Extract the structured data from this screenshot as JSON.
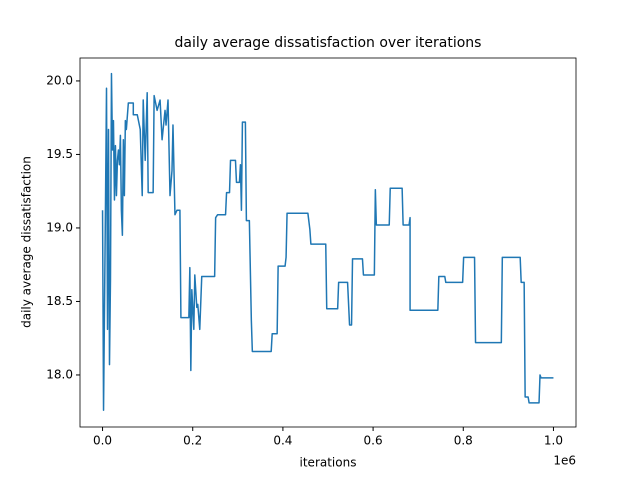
{
  "chart_data": {
    "type": "line",
    "title": "daily average dissatisfaction over iterations",
    "xlabel": "iterations",
    "ylabel": "daily average dissatisfaction",
    "x_offset_label": "1e6",
    "x": [
      0,
      2200,
      6600,
      8800,
      11000,
      13200,
      15400,
      17600,
      19800,
      22000,
      24200,
      26400,
      28600,
      30800,
      33000,
      35200,
      37400,
      39600,
      41800,
      44000,
      46200,
      48400,
      50600,
      52800,
      57200,
      68200,
      68200,
      77000,
      83600,
      88000,
      90200,
      94600,
      99000,
      101200,
      112200,
      114400,
      121000,
      127600,
      132000,
      138600,
      140800,
      145200,
      149600,
      154000,
      156200,
      160600,
      165000,
      171600,
      173800,
      191400,
      193600,
      195800,
      198000,
      202400,
      204600,
      209000,
      211200,
      215600,
      220000,
      248600,
      250800,
      255200,
      272800,
      275000,
      281600,
      283800,
      294800,
      297000,
      303600,
      305800,
      308000,
      310200,
      316800,
      319000,
      325600,
      330000,
      332200,
      374000,
      376200,
      387200,
      389400,
      404800,
      407000,
      409200,
      455400,
      459800,
      462000,
      495000,
      497200,
      521400,
      523600,
      543400,
      547800,
      552200,
      554400,
      576400,
      578600,
      602800,
      605000,
      607200,
      635800,
      638000,
      664400,
      666600,
      679800,
      682000,
      682000,
      743600,
      745800,
      759000,
      761200,
      798600,
      800800,
      825000,
      827200,
      884400,
      886600,
      926200,
      928400,
      935000,
      937200,
      943800,
      946000,
      968000,
      970200,
      972400,
      1000000
    ],
    "series": [
      {
        "name": "dissatisfaction",
        "color": "#1f77b4",
        "values": [
          19.12,
          17.76,
          19.19,
          19.95,
          18.31,
          19.67,
          18.07,
          18.65,
          20.05,
          19.53,
          19.73,
          19.19,
          19.56,
          19.22,
          19.46,
          19.53,
          19.43,
          19.63,
          19.12,
          18.95,
          19.6,
          19.22,
          19.73,
          19.67,
          19.85,
          19.85,
          19.77,
          19.77,
          19.67,
          19.22,
          19.87,
          19.46,
          19.92,
          19.24,
          19.24,
          19.9,
          19.8,
          19.87,
          19.6,
          19.8,
          19.7,
          19.87,
          19.22,
          19.39,
          19.7,
          19.09,
          19.12,
          19.12,
          18.39,
          18.39,
          18.73,
          18.03,
          18.58,
          18.31,
          18.68,
          18.46,
          18.48,
          18.31,
          18.67,
          18.67,
          19.07,
          19.09,
          19.09,
          19.24,
          19.24,
          19.46,
          19.46,
          19.31,
          19.31,
          19.43,
          19.12,
          19.72,
          19.72,
          19.05,
          19.05,
          18.37,
          18.16,
          18.16,
          18.28,
          18.28,
          18.74,
          18.74,
          18.8,
          19.1,
          19.1,
          18.99,
          18.89,
          18.89,
          18.45,
          18.45,
          18.63,
          18.63,
          18.34,
          18.34,
          18.79,
          18.79,
          18.68,
          18.68,
          19.26,
          19.02,
          19.02,
          19.27,
          19.27,
          19.02,
          19.02,
          19.07,
          18.44,
          18.44,
          18.67,
          18.67,
          18.63,
          18.63,
          18.8,
          18.8,
          18.22,
          18.22,
          18.8,
          18.8,
          18.63,
          18.63,
          17.85,
          17.85,
          17.81,
          17.81,
          18.0,
          17.98,
          17.98
        ]
      }
    ],
    "xlim": [
      -50000,
      1050000
    ],
    "xticks": [
      {
        "value": 0,
        "label": "0.0"
      },
      {
        "value": 200000,
        "label": "0.2"
      },
      {
        "value": 400000,
        "label": "0.4"
      },
      {
        "value": 600000,
        "label": "0.6"
      },
      {
        "value": 800000,
        "label": "0.8"
      },
      {
        "value": 1000000,
        "label": "1.0"
      }
    ],
    "ylim": [
      17.646,
      20.156
    ],
    "yticks": [
      {
        "value": 18.0,
        "label": "18.0"
      },
      {
        "value": 18.5,
        "label": "18.5"
      },
      {
        "value": 19.0,
        "label": "19.0"
      },
      {
        "value": 19.5,
        "label": "19.5"
      },
      {
        "value": 20.0,
        "label": "20.0"
      }
    ],
    "grid": false
  }
}
